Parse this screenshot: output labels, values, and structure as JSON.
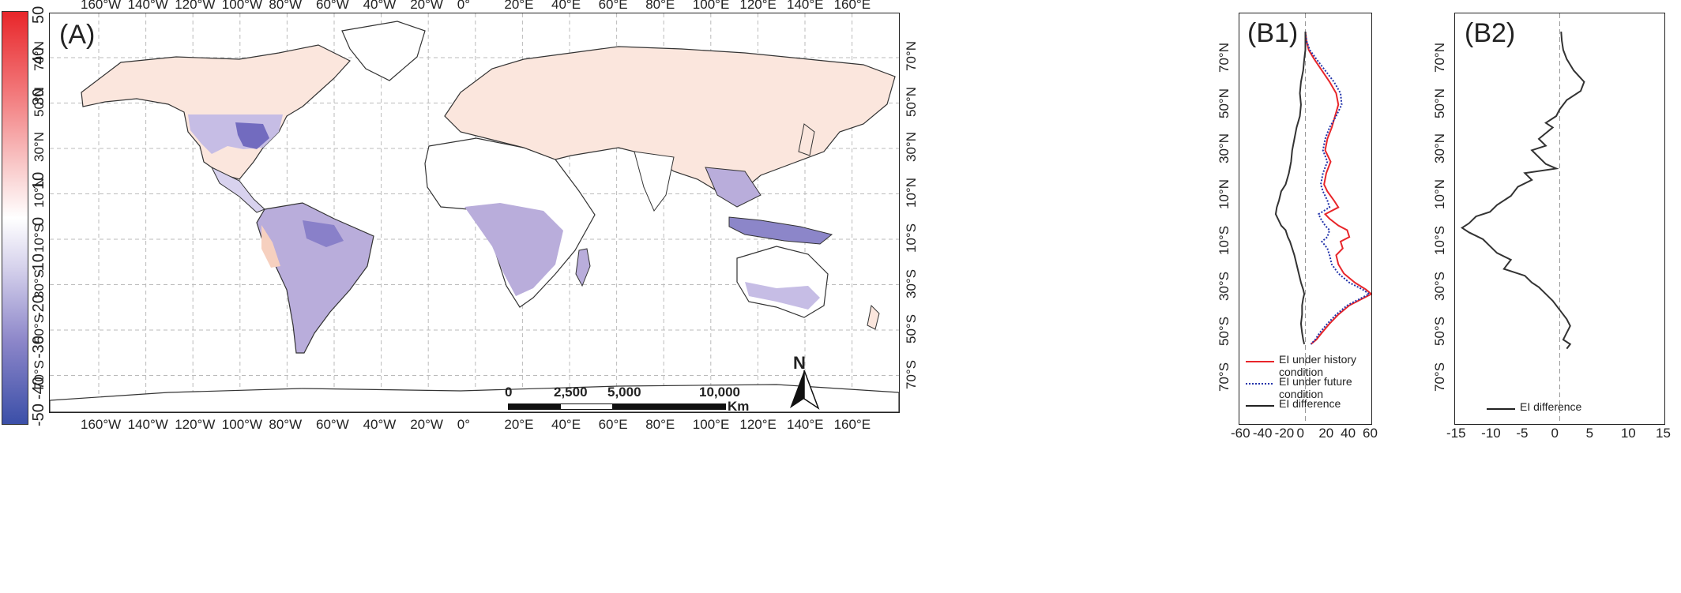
{
  "colorbar": {
    "ticks": [
      "50",
      "40",
      "30",
      "10",
      "0",
      "-10",
      "-20",
      "-30",
      "-40",
      "-50"
    ],
    "colors": {
      "max": "#e8262a",
      "mid": "#ffffff",
      "min": "#3b4fa8"
    }
  },
  "panelA": {
    "label": "(A)",
    "lon_labels": [
      "160°W",
      "140°W",
      "120°W",
      "100°W",
      "80°W",
      "60°W",
      "40°W",
      "20°W",
      "0°",
      "20°E",
      "40°E",
      "60°E",
      "80°E",
      "100°E",
      "120°E",
      "140°E",
      "160°E"
    ],
    "lat_labels": [
      "70°N",
      "50°N",
      "30°N",
      "10°N",
      "10°S",
      "30°S",
      "50°S",
      "70°S"
    ],
    "scale_bar": {
      "labels": [
        "0",
        "2,500",
        "5,000",
        "10,000"
      ],
      "unit": "Km"
    },
    "north_arrow": "N",
    "colors": {
      "land": "#ffffff",
      "warm": "#f6d9cc",
      "cool": "#b9addb",
      "strong_cool": "#5d56b5",
      "border": "#555555"
    }
  },
  "panelB1": {
    "label": "(B1)",
    "x_ticks": [
      "-60",
      "-40",
      "-20",
      "0",
      "20",
      "40",
      "60"
    ],
    "lat_labels": [
      "70°N",
      "50°N",
      "30°N",
      "10°N",
      "10°S",
      "30°S",
      "50°S",
      "70°S"
    ],
    "legend": [
      {
        "label": "EI under history condition",
        "color": "#e8262a",
        "style": "solid"
      },
      {
        "label": "EI under future condition",
        "color": "#2233aa",
        "style": "dotted"
      },
      {
        "label": "EI difference",
        "color": "#222222",
        "style": "solid"
      }
    ]
  },
  "panelB2": {
    "label": "(B2)",
    "x_ticks": [
      "-15",
      "-10",
      "-5",
      "0",
      "5",
      "10",
      "15"
    ],
    "lat_labels": [
      "70°N",
      "50°N",
      "30°N",
      "10°N",
      "10°S",
      "30°S",
      "50°S",
      "70°S"
    ],
    "legend": [
      {
        "label": "EI difference",
        "color": "#222222",
        "style": "solid"
      }
    ]
  },
  "chart_data": [
    {
      "type": "line",
      "panel": "B1",
      "series": [
        {
          "name": "EI under history condition",
          "x": [
            0,
            1,
            3,
            8,
            15,
            22,
            28,
            30,
            27,
            24,
            20,
            18,
            23,
            19,
            17,
            20,
            26,
            30,
            18,
            22,
            30,
            38,
            40,
            32,
            34,
            28,
            30,
            35,
            45,
            55,
            60,
            52,
            40,
            30,
            22,
            15,
            10,
            5
          ],
          "y": [
            82,
            78,
            74,
            70,
            65,
            60,
            55,
            50,
            45,
            40,
            35,
            30,
            25,
            20,
            15,
            12,
            8,
            5,
            2,
            0,
            -3,
            -5,
            -8,
            -10,
            -13,
            -16,
            -20,
            -24,
            -28,
            -31,
            -33,
            -35,
            -38,
            -42,
            -46,
            -50,
            -53,
            -55
          ]
        },
        {
          "name": "EI under future condition",
          "x": [
            0,
            1,
            4,
            10,
            18,
            26,
            32,
            33,
            28,
            22,
            18,
            16,
            20,
            16,
            14,
            16,
            20,
            22,
            12,
            14,
            18,
            22,
            20,
            15,
            20,
            22,
            24,
            30,
            40,
            52,
            58,
            50,
            38,
            28,
            20,
            13,
            9,
            5
          ],
          "y": [
            82,
            78,
            74,
            70,
            65,
            60,
            55,
            50,
            45,
            40,
            35,
            30,
            25,
            20,
            15,
            12,
            8,
            5,
            2,
            0,
            -3,
            -5,
            -8,
            -10,
            -13,
            -16,
            -20,
            -24,
            -28,
            -31,
            -33,
            -35,
            -38,
            -42,
            -46,
            -50,
            -53,
            -55
          ]
        },
        {
          "name": "EI difference",
          "x": [
            0,
            0,
            0,
            -1,
            -2,
            -4,
            -5,
            -4,
            -5,
            -8,
            -10,
            -12,
            -13,
            -15,
            -18,
            -22,
            -24,
            -26,
            -27,
            -25,
            -22,
            -18,
            -16,
            -14,
            -12,
            -10,
            -8,
            -6,
            -4,
            -2,
            -1,
            -2,
            -3,
            -3,
            -4,
            -3,
            -2,
            -1
          ],
          "y": [
            82,
            78,
            74,
            70,
            65,
            60,
            55,
            50,
            45,
            40,
            35,
            30,
            25,
            20,
            15,
            12,
            8,
            5,
            2,
            0,
            -3,
            -5,
            -8,
            -10,
            -13,
            -16,
            -20,
            -24,
            -28,
            -31,
            -33,
            -35,
            -38,
            -42,
            -46,
            -50,
            -53,
            -55
          ]
        }
      ],
      "xlim": [
        -60,
        60
      ],
      "ylim": [
        -90,
        90
      ]
    },
    {
      "type": "line",
      "panel": "B2",
      "series": [
        {
          "name": "EI difference",
          "x": [
            0.2,
            0.3,
            0.5,
            1,
            2,
            3.5,
            3,
            1,
            0,
            -0.5,
            -2,
            -1,
            -3,
            -2,
            -4,
            -3,
            -2,
            -0.5,
            -5,
            -4,
            -6,
            -7,
            -9,
            -10,
            -12,
            -13,
            -14,
            -13,
            -11,
            -10,
            -9,
            -7,
            -8,
            -5,
            -4,
            -3,
            -2,
            -1,
            0,
            1,
            1.5,
            1,
            0.5,
            1.5,
            1
          ],
          "y": [
            82,
            78,
            74,
            70,
            65,
            60,
            56,
            52,
            48,
            45,
            42,
            40,
            35,
            32,
            30,
            27,
            24,
            22,
            20,
            17,
            14,
            10,
            6,
            3,
            1,
            -2,
            -4,
            -6,
            -9,
            -12,
            -15,
            -18,
            -22,
            -25,
            -28,
            -30,
            -33,
            -36,
            -40,
            -44,
            -47,
            -50,
            -53,
            -55,
            -57
          ]
        }
      ],
      "xlim": [
        -15,
        15
      ],
      "ylim": [
        -90,
        90
      ]
    }
  ]
}
